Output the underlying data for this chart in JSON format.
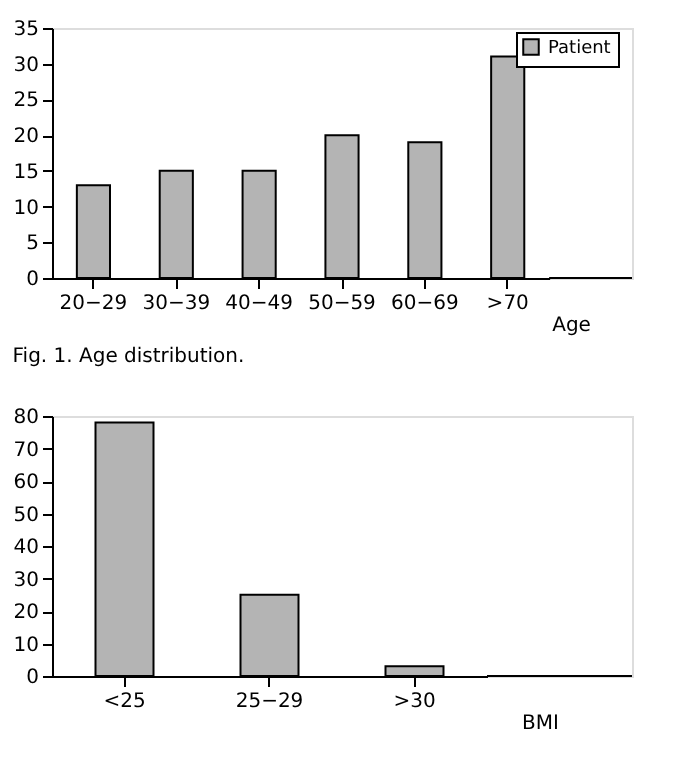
{
  "chart_data": [
    {
      "type": "bar",
      "categories": [
        "20−29",
        "30−39",
        "40−49",
        "50−59",
        "60−69",
        ">70"
      ],
      "xlabel": "Age",
      "series": [
        {
          "name": "Patient",
          "color": "#b4b4b4",
          "values": [
            13,
            15,
            15,
            20,
            19,
            31
          ]
        }
      ],
      "ylim": [
        0,
        35
      ],
      "yticks": [
        0,
        5,
        10,
        15,
        20,
        25,
        30,
        35
      ],
      "legend": "top right",
      "grid": false,
      "annotations": [
        "Fig. 1. Age distribution."
      ]
    },
    {
      "type": "bar",
      "categories": [
        "<25",
        "25−29",
        ">30"
      ],
      "xlabel": "BMI",
      "series": [
        {
          "name": "Patient",
          "color": "#b4b4b4",
          "values": [
            78,
            25,
            3
          ]
        }
      ],
      "ylim": [
        0,
        80
      ],
      "yticks": [
        0,
        10,
        20,
        30,
        40,
        50,
        60,
        70,
        80
      ],
      "legend": "top right",
      "grid": false
    }
  ]
}
